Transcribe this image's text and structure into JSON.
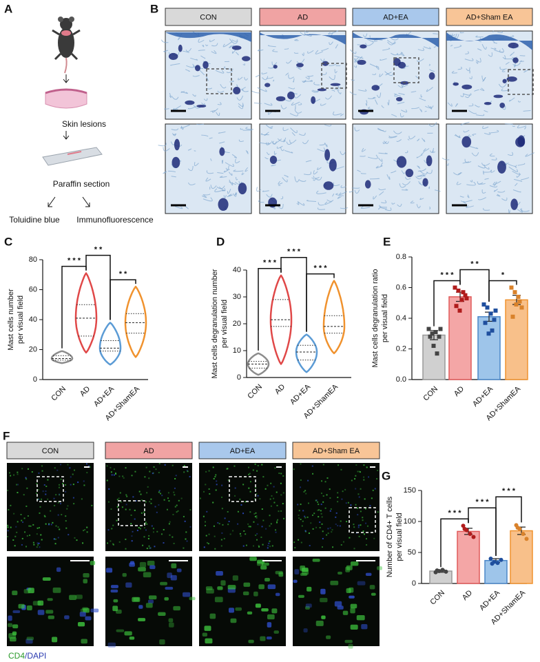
{
  "panels": {
    "A": {
      "label": "A",
      "steps": [
        "Skin lesions",
        "Paraffin section",
        "Toluidine blue",
        "Immunofluorescence"
      ]
    },
    "B": {
      "label": "B",
      "groups": [
        "CON",
        "AD",
        "AD+EA",
        "AD+Sham EA"
      ]
    },
    "F": {
      "label": "F",
      "groups": [
        "CON",
        "AD",
        "AD+EA",
        "AD+Sham EA"
      ],
      "stain": [
        "CD4",
        "/DAPI"
      ]
    }
  },
  "group_colors": [
    "#d9d9d9",
    "#f0a3a3",
    "#a9c8ec",
    "#f8c597"
  ],
  "chart_data": [
    {
      "type": "violin",
      "label": "C",
      "ylabel": [
        "Mast cells number",
        "per visual field"
      ],
      "categories": [
        "CON",
        "AD",
        "AD+EA",
        "AD+ShamEA"
      ],
      "colors": [
        "#8c8c8c",
        "#e04848",
        "#5b9bd5",
        "#f0922e"
      ],
      "stats": [
        {
          "min": 11,
          "q1": 13,
          "median": 14,
          "q3": 16,
          "max": 19
        },
        {
          "min": 18,
          "q1": 29,
          "median": 41,
          "q3": 50,
          "max": 71
        },
        {
          "min": 10,
          "q1": 19,
          "median": 21,
          "q3": 26,
          "max": 38
        },
        {
          "min": 15,
          "q1": 31,
          "median": 38,
          "q3": 44,
          "max": 62
        }
      ],
      "ylim": [
        0,
        80
      ],
      "yticks": [
        0,
        20,
        40,
        60,
        80
      ],
      "annotations": [
        {
          "from": 0,
          "to": 1,
          "label": "* * *"
        },
        {
          "from": 1,
          "to": 2,
          "label": "* *"
        },
        {
          "from": 2,
          "to": 3,
          "label": "* *"
        }
      ]
    },
    {
      "type": "violin",
      "label": "D",
      "ylabel": [
        "Mast cells degranulation number",
        "per visual field"
      ],
      "categories": [
        "CON",
        "AD",
        "AD+EA",
        "AD+ShamEA"
      ],
      "colors": [
        "#8c8c8c",
        "#e04848",
        "#5b9bd5",
        "#f0922e"
      ],
      "stats": [
        {
          "min": 1,
          "q1": 3.5,
          "median": 5,
          "q3": 6,
          "max": 9
        },
        {
          "min": 5,
          "q1": 19,
          "median": 21.5,
          "q3": 29,
          "max": 38
        },
        {
          "min": 2,
          "q1": 6.5,
          "median": 9.5,
          "q3": 12,
          "max": 16
        },
        {
          "min": 9,
          "q1": 16.5,
          "median": 19,
          "q3": 23,
          "max": 36
        }
      ],
      "ylim": [
        0,
        40
      ],
      "yticks": [
        0,
        10,
        20,
        30,
        40
      ],
      "annotations": [
        {
          "from": 0,
          "to": 1,
          "label": "* * *"
        },
        {
          "from": 1,
          "to": 2,
          "label": "* * *"
        },
        {
          "from": 2,
          "to": 3,
          "label": "* * *"
        }
      ]
    },
    {
      "type": "bar",
      "label": "E",
      "ylabel": [
        "Mast cells degranulation ratio",
        "per visual field"
      ],
      "categories": [
        "CON",
        "AD",
        "AD+EA",
        "AD+ShamEA"
      ],
      "colors": [
        "#999999",
        "#e05a5a",
        "#4a86c8",
        "#f0922e"
      ],
      "fill_colors": [
        "#d0d0d0",
        "#f4a6a6",
        "#9ec5ea",
        "#f8c08a"
      ],
      "dot_colors": [
        "#444444",
        "#b01c1c",
        "#1f4f9e",
        "#d9822b"
      ],
      "values": [
        0.29,
        0.54,
        0.41,
        0.52
      ],
      "errors": [
        0.03,
        0.03,
        0.03,
        0.03
      ],
      "points": [
        [
          0.33,
          0.3,
          0.31,
          0.28,
          0.28,
          0.22,
          0.17,
          0.33
        ],
        [
          0.6,
          0.58,
          0.52,
          0.55,
          0.48,
          0.45,
          0.57,
          0.53
        ],
        [
          0.49,
          0.47,
          0.43,
          0.39,
          0.37,
          0.3,
          0.32,
          0.45
        ],
        [
          0.6,
          0.57,
          0.54,
          0.47,
          0.41,
          0.49,
          0.51
        ]
      ],
      "ylim": [
        0,
        0.8
      ],
      "yticks": [
        {
          "value": 0,
          "label": "0.0"
        },
        0.2,
        0.4,
        0.6,
        0.8
      ],
      "annotations": [
        {
          "from": 0,
          "to": 1,
          "label": "* * *"
        },
        {
          "from": 1,
          "to": 2,
          "label": "* *"
        },
        {
          "from": 2,
          "to": 3,
          "label": "*"
        }
      ]
    },
    {
      "type": "bar",
      "label": "G",
      "ylabel": [
        "Number of CD4+ T cells",
        "per visual field"
      ],
      "categories": [
        "CON",
        "AD",
        "AD+EA",
        "AD+ShamEA"
      ],
      "colors": [
        "#999999",
        "#e05a5a",
        "#4a86c8",
        "#f0922e"
      ],
      "fill_colors": [
        "#d0d0d0",
        "#f4a6a6",
        "#9ec5ea",
        "#f8c08a"
      ],
      "dot_colors": [
        "#444444",
        "#b01c1c",
        "#1f4f9e",
        "#d9822b"
      ],
      "values": [
        20,
        84,
        37,
        85
      ],
      "errors": [
        2,
        5,
        3,
        6
      ],
      "points": [
        [
          18,
          20,
          22,
          19,
          21
        ],
        [
          93,
          86,
          80,
          75,
          88
        ],
        [
          40,
          35,
          33,
          38,
          32
        ],
        [
          94,
          88,
          80,
          72,
          90
        ]
      ],
      "ylim": [
        0,
        150
      ],
      "yticks": [
        0,
        50,
        100,
        150
      ],
      "annotations": [
        {
          "from": 0,
          "to": 1,
          "label": "* * *"
        },
        {
          "from": 1,
          "to": 2,
          "label": "* * *"
        },
        {
          "from": 2,
          "to": 3,
          "label": "* * *"
        }
      ]
    }
  ]
}
